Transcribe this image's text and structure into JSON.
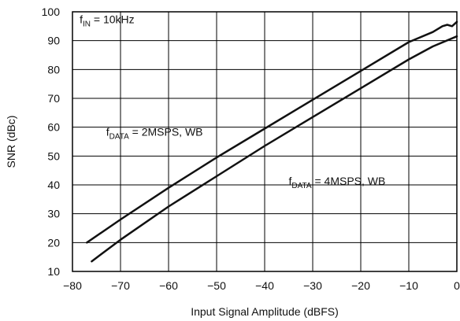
{
  "chart_data": {
    "type": "line",
    "title": "",
    "xlabel": "Input Signal Amplitude (dBFS)",
    "ylabel": "SNR (dBc)",
    "xlim": [
      -80,
      0
    ],
    "ylim": [
      10,
      100
    ],
    "x_ticks": [
      -80,
      -70,
      -60,
      -50,
      -40,
      -30,
      -20,
      -10,
      0
    ],
    "x_tick_labels": [
      "−80",
      "−70",
      "−60",
      "−50",
      "−40",
      "−30",
      "−20",
      "−10",
      "0"
    ],
    "y_ticks": [
      10,
      20,
      30,
      40,
      50,
      60,
      70,
      80,
      90,
      100
    ],
    "y_tick_labels": [
      "10",
      "20",
      "30",
      "40",
      "50",
      "60",
      "70",
      "80",
      "90",
      "100"
    ],
    "grid": true,
    "line_color": "#111111",
    "grid_color": "#000000",
    "annotations": [
      {
        "main": "f",
        "sub": "IN",
        "rest": " = 10kHz",
        "x": -78.5,
        "y": 96
      },
      {
        "main": "f",
        "sub": "DATA",
        "rest": " = 2MSPS, WB",
        "x": -73,
        "y": 57
      },
      {
        "main": "f",
        "sub": "DATA",
        "rest": " = 4MSPS, WB",
        "x": -35,
        "y": 40
      }
    ],
    "series": [
      {
        "label_ref": "fDATA = 2MSPS, WB",
        "x": [
          -77,
          -70,
          -60,
          -50,
          -40,
          -30,
          -20,
          -10,
          -5,
          -3,
          -2,
          -1,
          0
        ],
        "y": [
          20,
          28,
          39,
          49.5,
          59.5,
          69.5,
          79.5,
          89.5,
          93,
          95,
          95.5,
          95,
          96.5
        ]
      },
      {
        "label_ref": "fDATA = 4MSPS, WB",
        "x": [
          -76,
          -70,
          -60,
          -50,
          -40,
          -30,
          -20,
          -10,
          -5,
          0
        ],
        "y": [
          13.5,
          21,
          32.5,
          43,
          53.5,
          63.5,
          73.5,
          83.5,
          88,
          91.5
        ]
      }
    ]
  }
}
